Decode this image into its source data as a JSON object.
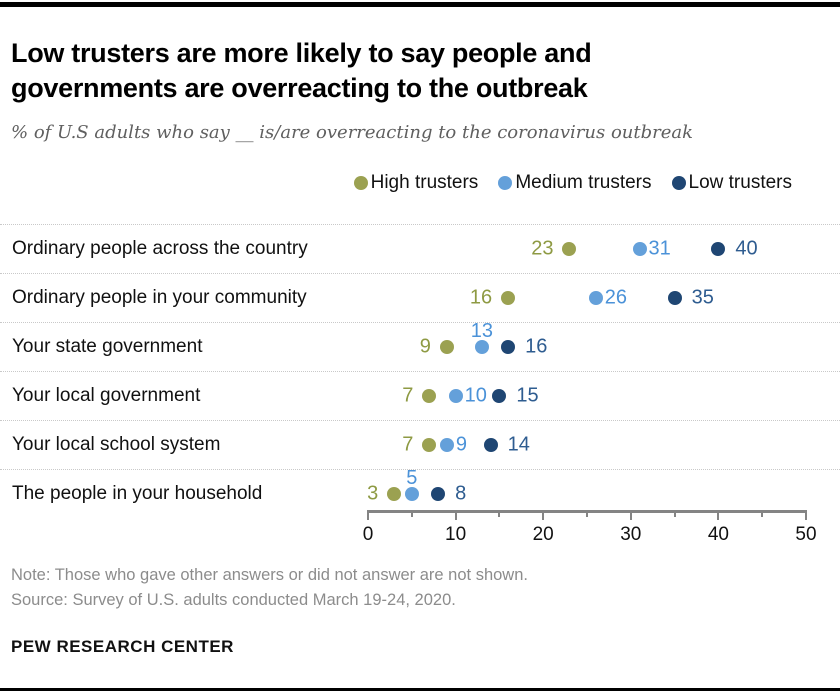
{
  "chart_data": {
    "type": "scatter",
    "title_lines": [
      "Low trusters are more likely to say people and",
      "governments are overreacting to the outbreak"
    ],
    "subtitle": "% of U.S adults who say __ is/are overreacting to the coronavirus outbreak",
    "categories": [
      "Ordinary people across the country",
      "Ordinary people in your community",
      "Your state government",
      "Your local government",
      "Your local school system",
      "The people in your household"
    ],
    "series": [
      {
        "name": "High trusters",
        "color": "#9ba151",
        "label_color": "#8e9a43",
        "values": [
          23,
          16,
          9,
          7,
          7,
          3
        ]
      },
      {
        "name": "Medium trusters",
        "color": "#64a0da",
        "label_color": "#4b92d8",
        "values": [
          31,
          26,
          13,
          10,
          9,
          5
        ]
      },
      {
        "name": "Low trusters",
        "color": "#1f4673",
        "label_color": "#2e5c90",
        "values": [
          40,
          35,
          16,
          15,
          14,
          8
        ]
      }
    ],
    "label_positions": [
      [
        "left",
        "right",
        "right"
      ],
      [
        "left",
        "right",
        "right"
      ],
      [
        "left",
        "above",
        "right"
      ],
      [
        "left",
        "right",
        "right"
      ],
      [
        "left",
        "right",
        "right"
      ],
      [
        "left",
        "above",
        "right"
      ]
    ],
    "xlim": [
      0,
      50
    ],
    "major_ticks": [
      0,
      10,
      20,
      30,
      40,
      50
    ],
    "minor_ticks": [
      5,
      15,
      25,
      35,
      45
    ],
    "tick_labels": [
      "0",
      "10",
      "20",
      "30",
      "40",
      "50"
    ],
    "grid": "dotted-row-separators",
    "legend_position": "top-right"
  },
  "footer": {
    "note": "Note: Those who gave other answers or did not answer are not shown.",
    "source": "Source: Survey of U.S. adults conducted March 19-24, 2020.",
    "brand": "PEW RESEARCH CENTER"
  }
}
